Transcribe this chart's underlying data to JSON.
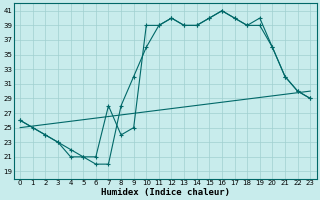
{
  "xlabel": "Humidex (Indice chaleur)",
  "bg_color": "#c8ecec",
  "grid_color": "#a0d0d0",
  "line_color": "#006868",
  "xlim": [
    -0.5,
    23.5
  ],
  "ylim": [
    18,
    42
  ],
  "yticks": [
    19,
    21,
    23,
    25,
    27,
    29,
    31,
    33,
    35,
    37,
    39,
    41
  ],
  "xticks": [
    0,
    1,
    2,
    3,
    4,
    5,
    6,
    7,
    8,
    9,
    10,
    11,
    12,
    13,
    14,
    15,
    16,
    17,
    18,
    19,
    20,
    21,
    22,
    23
  ],
  "line1_x": [
    0,
    1,
    2,
    3,
    4,
    5,
    6,
    7,
    8,
    9,
    10,
    11,
    12,
    13,
    14,
    15,
    16,
    17,
    18,
    19,
    20,
    21,
    22,
    23
  ],
  "line1_y": [
    26,
    25,
    24,
    23,
    21,
    21,
    20,
    20,
    28,
    32,
    36,
    39,
    40,
    39,
    39,
    40,
    41,
    40,
    39,
    39,
    36,
    32,
    30,
    29
  ],
  "line2_x": [
    0,
    2,
    3,
    4,
    5,
    6,
    7,
    8,
    9,
    10,
    11,
    12,
    13,
    14,
    15,
    16,
    17,
    18,
    19,
    20,
    21,
    22,
    23
  ],
  "line2_y": [
    26,
    24,
    23,
    22,
    21,
    21,
    28,
    24,
    25,
    39,
    39,
    40,
    39,
    39,
    40,
    41,
    40,
    39,
    40,
    36,
    32,
    30,
    29
  ],
  "line3_x": [
    0,
    23
  ],
  "line3_y": [
    25,
    30
  ],
  "marker": "+"
}
